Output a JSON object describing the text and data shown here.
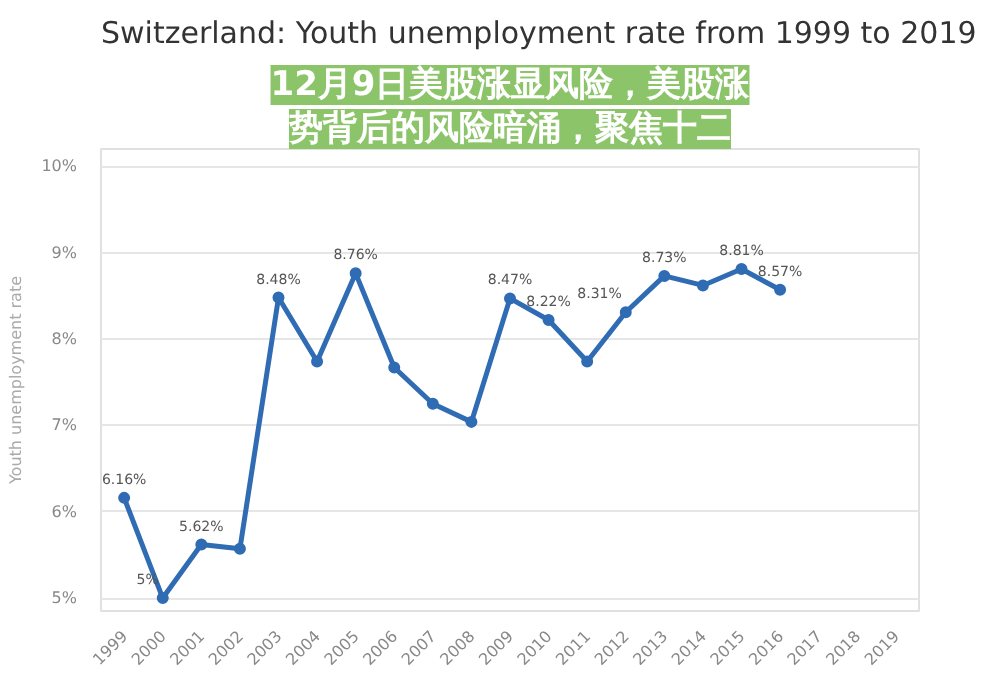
{
  "chart_data": {
    "type": "line",
    "title": "Switzerland: Youth unemployment rate from 1999 to 2019",
    "ylabel": "Youth unemployment rate",
    "categories": [
      "1999",
      "2000",
      "2001",
      "2002",
      "2003",
      "2004",
      "2005",
      "2006",
      "2007",
      "2008",
      "2009",
      "2010",
      "2011",
      "2012",
      "2013",
      "2014",
      "2015",
      "2016",
      "2017",
      "2018",
      "2019"
    ],
    "series": [
      {
        "color": "#2f6cb3",
        "values": [
          6.16,
          5.0,
          5.62,
          5.57,
          8.48,
          7.74,
          8.76,
          7.67,
          7.25,
          7.04,
          8.47,
          8.22,
          7.74,
          8.31,
          8.73,
          8.62,
          8.81,
          8.57,
          null,
          null,
          null
        ],
        "value_labels": [
          "6.16%",
          "5%",
          "5.62%",
          null,
          "8.48%",
          null,
          "8.76%",
          null,
          null,
          null,
          "8.47%",
          "8.22%",
          null,
          "8.31%",
          "8.73%",
          null,
          "8.81%",
          "8.57%",
          null,
          null,
          null
        ]
      }
    ],
    "ylim": [
      4.85,
      10.2
    ],
    "yticks": [
      {
        "value": 5,
        "label": "5%"
      },
      {
        "value": 6,
        "label": "6%"
      },
      {
        "value": 7,
        "label": "7%"
      },
      {
        "value": 8,
        "label": "8%"
      },
      {
        "value": 9,
        "label": "9%"
      },
      {
        "value": 10,
        "label": "10%"
      }
    ],
    "grid": "y",
    "marker": "circle",
    "annotations": [
      "12月9日美股涨显风险，美股涨",
      "势背后的风险暗涌，聚焦十二"
    ]
  }
}
